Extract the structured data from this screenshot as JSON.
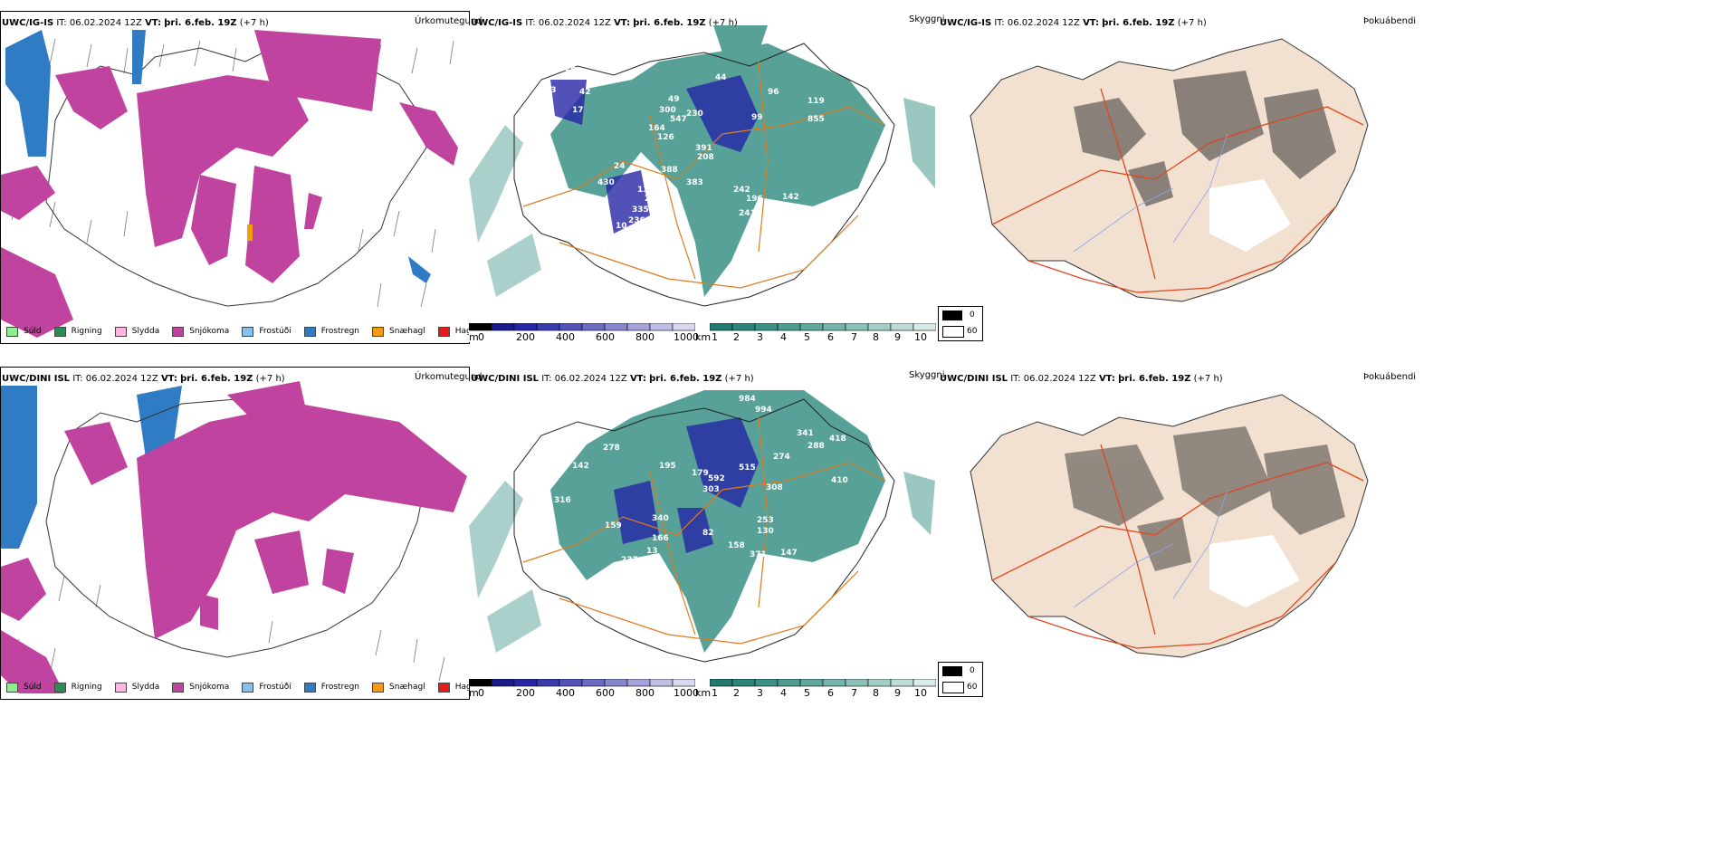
{
  "rows": [
    {
      "model": "UWC/IG-IS",
      "it_label": "IT:",
      "it_value": "06.02.2024 12Z",
      "vt_label": "VT:",
      "vt_value": "þri. 6.feb. 19Z",
      "lead": "(+7 h)"
    },
    {
      "model": "UWC/DINI ISL",
      "it_label": "IT:",
      "it_value": "06.02.2024 12Z",
      "vt_label": "VT:",
      "vt_value": "þri. 6.feb. 19Z",
      "lead": "(+7 h)"
    }
  ],
  "panel_titles": {
    "precip_type": "Úrkomutegund",
    "clouds": "Skyggni",
    "fog": "Þokuábendi"
  },
  "precip_legend": [
    {
      "label": "Súld",
      "color": "#90ee90"
    },
    {
      "label": "Rigning",
      "color": "#2e8b57"
    },
    {
      "label": "Slydda",
      "color": "#ffb6e1"
    },
    {
      "label": "Snjókoma",
      "color": "#c0439f"
    },
    {
      "label": "Frostúði",
      "color": "#87bfee"
    },
    {
      "label": "Frostregn",
      "color": "#2f7cc4"
    },
    {
      "label": "Snæhagl",
      "color": "#f39c12"
    },
    {
      "label": "Haglél",
      "color": "#e41a1c"
    }
  ],
  "ceiling_bar": {
    "unit": "m",
    "ticks": [
      "0",
      "200",
      "400",
      "600",
      "800",
      "1000"
    ],
    "colors": [
      "#000000",
      "#1a1a8c",
      "#2626a6",
      "#3a3aaf",
      "#5252b8",
      "#6a6ac2",
      "#8787cf",
      "#a3a3dc",
      "#bdbde6",
      "#d8d8f0"
    ]
  },
  "visibility_bar": {
    "unit": "km",
    "ticks": [
      "1",
      "2",
      "3",
      "4",
      "5",
      "6",
      "7",
      "8",
      "9",
      "10"
    ],
    "colors": [
      "#1f7a70",
      "#2b857b",
      "#3a9186",
      "#4c9c92",
      "#5fa89e",
      "#74b4ab",
      "#8ac1b9",
      "#a2cec7",
      "#bcdcd6",
      "#d8ebe8"
    ]
  },
  "fog_bar": {
    "ticks": [
      "0",
      "60"
    ]
  },
  "cloud_labels_top": [
    "26",
    "13",
    "44",
    "42",
    "17",
    "49",
    "300",
    "547",
    "230",
    "164",
    "126",
    "391",
    "208",
    "24",
    "388",
    "430",
    "139",
    "204",
    "335",
    "236",
    "284",
    "10",
    "383",
    "242",
    "196",
    "241",
    "142",
    "99",
    "855",
    "119",
    "96"
  ],
  "cloud_labels_bottom": [
    "278",
    "142",
    "195",
    "179",
    "592",
    "303",
    "316",
    "159",
    "340",
    "166",
    "237",
    "214",
    "192",
    "13",
    "82",
    "371",
    "147",
    "253",
    "130",
    "308",
    "274",
    "288",
    "341",
    "410",
    "984",
    "994",
    "515",
    "418",
    "158",
    "20",
    "63"
  ]
}
